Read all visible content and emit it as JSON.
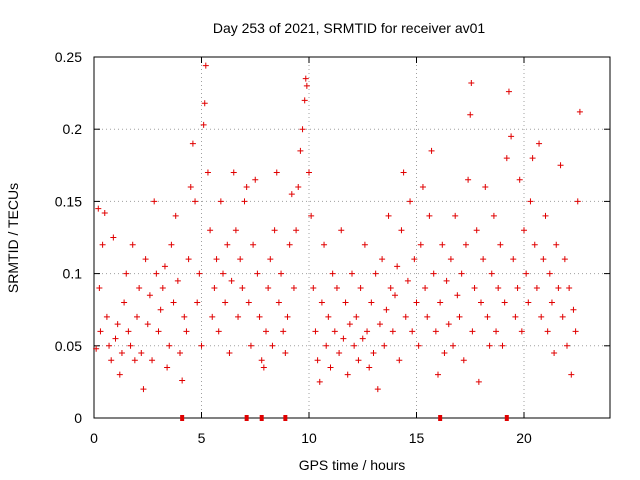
{
  "chart_data": {
    "type": "scatter",
    "title": "Day 253 of 2021, SRMTID for receiver av01",
    "xlabel": "GPS time / hours",
    "ylabel": "SRMTID / TECUs",
    "xlim": [
      0,
      24
    ],
    "ylim": [
      0,
      0.25
    ],
    "x_ticks": [
      0,
      5,
      10,
      15,
      20
    ],
    "x_tick_labels": [
      "0",
      "5",
      "10",
      "15",
      "20"
    ],
    "y_ticks": [
      0,
      0.05,
      0.1,
      0.15,
      0.2,
      0.25
    ],
    "y_tick_labels": [
      "0",
      "0.05",
      "0.1",
      "0.15",
      "0.2",
      "0.25"
    ],
    "grid": true,
    "marker": "+",
    "color": "#e00000",
    "gap_markers_x": [
      4.1,
      7.1,
      7.8,
      8.9,
      16.1,
      19.2
    ],
    "series": [
      {
        "name": "av01",
        "points": [
          [
            0.1,
            0.048
          ],
          [
            0.2,
            0.145
          ],
          [
            0.25,
            0.09
          ],
          [
            0.3,
            0.06
          ],
          [
            0.4,
            0.12
          ],
          [
            0.5,
            0.142
          ],
          [
            0.6,
            0.07
          ],
          [
            0.7,
            0.05
          ],
          [
            0.8,
            0.04
          ],
          [
            0.9,
            0.125
          ],
          [
            1.0,
            0.055
          ],
          [
            1.1,
            0.065
          ],
          [
            1.2,
            0.03
          ],
          [
            1.3,
            0.045
          ],
          [
            1.4,
            0.08
          ],
          [
            1.5,
            0.1
          ],
          [
            1.6,
            0.06
          ],
          [
            1.7,
            0.05
          ],
          [
            1.8,
            0.12
          ],
          [
            1.9,
            0.04
          ],
          [
            2.0,
            0.07
          ],
          [
            2.1,
            0.09
          ],
          [
            2.2,
            0.045
          ],
          [
            2.3,
            0.02
          ],
          [
            2.4,
            0.11
          ],
          [
            2.5,
            0.065
          ],
          [
            2.6,
            0.085
          ],
          [
            2.7,
            0.04
          ],
          [
            2.8,
            0.15
          ],
          [
            2.9,
            0.1
          ],
          [
            3.0,
            0.06
          ],
          [
            3.1,
            0.075
          ],
          [
            3.2,
            0.09
          ],
          [
            3.3,
            0.105
          ],
          [
            3.4,
            0.035
          ],
          [
            3.5,
            0.05
          ],
          [
            3.6,
            0.12
          ],
          [
            3.7,
            0.08
          ],
          [
            3.8,
            0.14
          ],
          [
            3.9,
            0.095
          ],
          [
            4.0,
            0.045
          ],
          [
            4.1,
            0.026
          ],
          [
            4.2,
            0.07
          ],
          [
            4.3,
            0.06
          ],
          [
            4.4,
            0.11
          ],
          [
            4.5,
            0.16
          ],
          [
            4.6,
            0.19
          ],
          [
            4.7,
            0.15
          ],
          [
            4.8,
            0.08
          ],
          [
            4.9,
            0.1
          ],
          [
            5.0,
            0.05
          ],
          [
            5.1,
            0.203
          ],
          [
            5.15,
            0.218
          ],
          [
            5.2,
            0.244
          ],
          [
            5.3,
            0.17
          ],
          [
            5.4,
            0.13
          ],
          [
            5.5,
            0.07
          ],
          [
            5.6,
            0.09
          ],
          [
            5.7,
            0.11
          ],
          [
            5.8,
            0.06
          ],
          [
            5.9,
            0.15
          ],
          [
            6.0,
            0.1
          ],
          [
            6.1,
            0.08
          ],
          [
            6.2,
            0.12
          ],
          [
            6.3,
            0.045
          ],
          [
            6.4,
            0.095
          ],
          [
            6.5,
            0.17
          ],
          [
            6.6,
            0.13
          ],
          [
            6.7,
            0.07
          ],
          [
            6.8,
            0.11
          ],
          [
            6.9,
            0.09
          ],
          [
            7.0,
            0.15
          ],
          [
            7.1,
            0.16
          ],
          [
            7.2,
            0.08
          ],
          [
            7.3,
            0.05
          ],
          [
            7.4,
            0.12
          ],
          [
            7.5,
            0.165
          ],
          [
            7.6,
            0.1
          ],
          [
            7.7,
            0.07
          ],
          [
            7.8,
            0.04
          ],
          [
            7.9,
            0.035
          ],
          [
            8.0,
            0.06
          ],
          [
            8.1,
            0.09
          ],
          [
            8.2,
            0.11
          ],
          [
            8.3,
            0.05
          ],
          [
            8.4,
            0.13
          ],
          [
            8.5,
            0.17
          ],
          [
            8.6,
            0.08
          ],
          [
            8.7,
            0.1
          ],
          [
            8.8,
            0.06
          ],
          [
            8.9,
            0.045
          ],
          [
            9.0,
            0.07
          ],
          [
            9.1,
            0.12
          ],
          [
            9.2,
            0.155
          ],
          [
            9.3,
            0.09
          ],
          [
            9.4,
            0.13
          ],
          [
            9.5,
            0.16
          ],
          [
            9.6,
            0.185
          ],
          [
            9.7,
            0.2
          ],
          [
            9.8,
            0.22
          ],
          [
            9.85,
            0.235
          ],
          [
            9.9,
            0.23
          ],
          [
            10.0,
            0.17
          ],
          [
            10.1,
            0.14
          ],
          [
            10.2,
            0.09
          ],
          [
            10.3,
            0.06
          ],
          [
            10.4,
            0.04
          ],
          [
            10.5,
            0.025
          ],
          [
            10.6,
            0.08
          ],
          [
            10.7,
            0.12
          ],
          [
            10.8,
            0.05
          ],
          [
            10.9,
            0.07
          ],
          [
            11.0,
            0.035
          ],
          [
            11.1,
            0.1
          ],
          [
            11.2,
            0.06
          ],
          [
            11.3,
            0.09
          ],
          [
            11.4,
            0.045
          ],
          [
            11.5,
            0.13
          ],
          [
            11.6,
            0.055
          ],
          [
            11.7,
            0.08
          ],
          [
            11.8,
            0.03
          ],
          [
            11.9,
            0.065
          ],
          [
            12.0,
            0.1
          ],
          [
            12.1,
            0.05
          ],
          [
            12.2,
            0.07
          ],
          [
            12.3,
            0.04
          ],
          [
            12.4,
            0.09
          ],
          [
            12.5,
            0.055
          ],
          [
            12.6,
            0.12
          ],
          [
            12.7,
            0.06
          ],
          [
            12.8,
            0.035
          ],
          [
            12.9,
            0.08
          ],
          [
            13.0,
            0.045
          ],
          [
            13.1,
            0.1
          ],
          [
            13.2,
            0.02
          ],
          [
            13.3,
            0.065
          ],
          [
            13.4,
            0.11
          ],
          [
            13.5,
            0.05
          ],
          [
            13.6,
            0.075
          ],
          [
            13.7,
            0.14
          ],
          [
            13.8,
            0.09
          ],
          [
            13.9,
            0.06
          ],
          [
            14.0,
            0.085
          ],
          [
            14.1,
            0.105
          ],
          [
            14.2,
            0.04
          ],
          [
            14.3,
            0.13
          ],
          [
            14.4,
            0.17
          ],
          [
            14.5,
            0.07
          ],
          [
            14.6,
            0.095
          ],
          [
            14.7,
            0.15
          ],
          [
            14.8,
            0.06
          ],
          [
            14.9,
            0.11
          ],
          [
            15.0,
            0.08
          ],
          [
            15.1,
            0.05
          ],
          [
            15.2,
            0.12
          ],
          [
            15.3,
            0.16
          ],
          [
            15.4,
            0.09
          ],
          [
            15.5,
            0.07
          ],
          [
            15.6,
            0.14
          ],
          [
            15.7,
            0.185
          ],
          [
            15.8,
            0.1
          ],
          [
            15.9,
            0.06
          ],
          [
            16.0,
            0.03
          ],
          [
            16.1,
            0.08
          ],
          [
            16.2,
            0.12
          ],
          [
            16.3,
            0.045
          ],
          [
            16.4,
            0.095
          ],
          [
            16.5,
            0.065
          ],
          [
            16.6,
            0.11
          ],
          [
            16.7,
            0.05
          ],
          [
            16.8,
            0.14
          ],
          [
            16.9,
            0.085
          ],
          [
            17.0,
            0.07
          ],
          [
            17.1,
            0.1
          ],
          [
            17.2,
            0.04
          ],
          [
            17.3,
            0.12
          ],
          [
            17.4,
            0.165
          ],
          [
            17.5,
            0.21
          ],
          [
            17.55,
            0.232
          ],
          [
            17.6,
            0.06
          ],
          [
            17.7,
            0.09
          ],
          [
            17.8,
            0.13
          ],
          [
            17.9,
            0.025
          ],
          [
            18.0,
            0.08
          ],
          [
            18.1,
            0.11
          ],
          [
            18.2,
            0.16
          ],
          [
            18.3,
            0.07
          ],
          [
            18.4,
            0.05
          ],
          [
            18.5,
            0.1
          ],
          [
            18.6,
            0.14
          ],
          [
            18.7,
            0.06
          ],
          [
            18.8,
            0.09
          ],
          [
            18.9,
            0.12
          ],
          [
            19.0,
            0.05
          ],
          [
            19.1,
            0.08
          ],
          [
            19.2,
            0.18
          ],
          [
            19.3,
            0.226
          ],
          [
            19.4,
            0.195
          ],
          [
            19.5,
            0.11
          ],
          [
            19.6,
            0.07
          ],
          [
            19.7,
            0.09
          ],
          [
            19.8,
            0.165
          ],
          [
            19.9,
            0.06
          ],
          [
            20.0,
            0.13
          ],
          [
            20.1,
            0.1
          ],
          [
            20.2,
            0.08
          ],
          [
            20.3,
            0.15
          ],
          [
            20.4,
            0.18
          ],
          [
            20.5,
            0.12
          ],
          [
            20.6,
            0.09
          ],
          [
            20.7,
            0.19
          ],
          [
            20.8,
            0.07
          ],
          [
            20.9,
            0.11
          ],
          [
            21.0,
            0.14
          ],
          [
            21.1,
            0.06
          ],
          [
            21.2,
            0.1
          ],
          [
            21.3,
            0.08
          ],
          [
            21.4,
            0.045
          ],
          [
            21.5,
            0.12
          ],
          [
            21.6,
            0.09
          ],
          [
            21.7,
            0.175
          ],
          [
            21.8,
            0.07
          ],
          [
            21.9,
            0.11
          ],
          [
            22.0,
            0.05
          ],
          [
            22.1,
            0.09
          ],
          [
            22.2,
            0.03
          ],
          [
            22.3,
            0.075
          ],
          [
            22.4,
            0.06
          ],
          [
            22.5,
            0.15
          ],
          [
            22.6,
            0.212
          ]
        ]
      }
    ]
  }
}
